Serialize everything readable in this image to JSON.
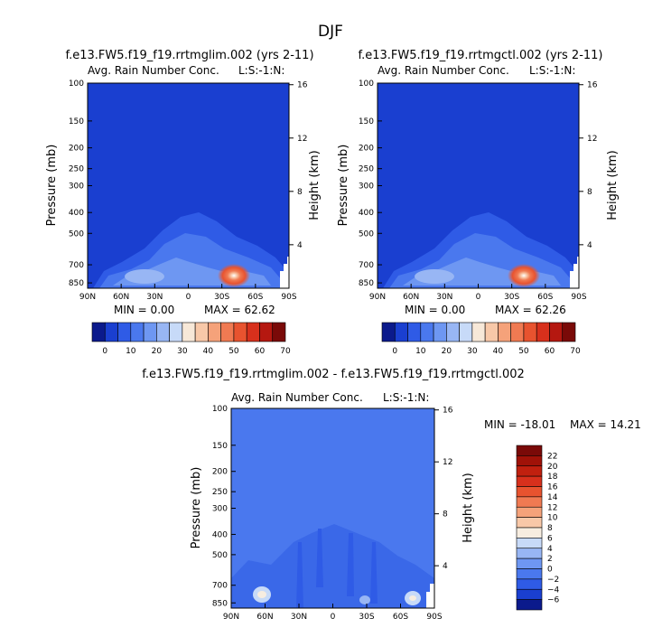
{
  "page_title": "DJF",
  "chart_data": [
    {
      "type": "heatmap",
      "title": "f.e13.FW5.f19_f19.rrtmglim.002 (yrs 2-11)",
      "subtitle_left": "Avg. Rain Number Conc.",
      "subtitle_right": "L:S:-1:N:",
      "ylabel": "Pressure (mb)",
      "y2label": "Height (km)",
      "x_ticks": [
        "90N",
        "60N",
        "30N",
        "0",
        "30S",
        "60S",
        "90S"
      ],
      "y_ticks": [
        "100",
        "150",
        "200",
        "250",
        "300",
        "400",
        "500",
        "700",
        "850"
      ],
      "y2_ticks": [
        "16",
        "12",
        "8",
        "4"
      ],
      "min_label": "MIN =    0.00",
      "max_label": "MAX =   62.62",
      "min": 0.0,
      "max": 62.62,
      "colorbar_labels": [
        "0",
        "10",
        "20",
        "30",
        "40",
        "50",
        "60",
        "70"
      ],
      "levels": [
        -5,
        0,
        5,
        10,
        15,
        20,
        25,
        30,
        35,
        40,
        45,
        50,
        55,
        60,
        65,
        70
      ],
      "colors": [
        "#0b1a8c",
        "#1a3fd0",
        "#2f5be6",
        "#4a78ee",
        "#6e97f2",
        "#98b6f4",
        "#c7daf8",
        "#f7e8d8",
        "#f8c8a8",
        "#f5a27a",
        "#f07a52",
        "#e8532f",
        "#d7301c",
        "#b51810",
        "#7a0a08"
      ],
      "peak": {
        "lat_label": "45S",
        "pressure_mb": 850,
        "value": 62.62
      }
    },
    {
      "type": "heatmap",
      "title": "f.e13.FW5.f19_f19.rrtmgctl.002 (yrs 2-11)",
      "subtitle_left": "Avg. Rain Number Conc.",
      "subtitle_right": "L:S:-1:N:",
      "ylabel": "Pressure (mb)",
      "y2label": "Height (km)",
      "x_ticks": [
        "90N",
        "60N",
        "30N",
        "0",
        "30S",
        "60S",
        "90S"
      ],
      "y_ticks": [
        "100",
        "150",
        "200",
        "250",
        "300",
        "400",
        "500",
        "700",
        "850"
      ],
      "y2_ticks": [
        "16",
        "12",
        "8",
        "4"
      ],
      "min_label": "MIN =    0.00",
      "max_label": "MAX =   62.26",
      "min": 0.0,
      "max": 62.26,
      "colorbar_labels": [
        "0",
        "10",
        "20",
        "30",
        "40",
        "50",
        "60",
        "70"
      ],
      "levels": [
        -5,
        0,
        5,
        10,
        15,
        20,
        25,
        30,
        35,
        40,
        45,
        50,
        55,
        60,
        65,
        70
      ],
      "colors": [
        "#0b1a8c",
        "#1a3fd0",
        "#2f5be6",
        "#4a78ee",
        "#6e97f2",
        "#98b6f4",
        "#c7daf8",
        "#f7e8d8",
        "#f8c8a8",
        "#f5a27a",
        "#f07a52",
        "#e8532f",
        "#d7301c",
        "#b51810",
        "#7a0a08"
      ],
      "peak": {
        "lat_label": "45S",
        "pressure_mb": 850,
        "value": 62.26
      }
    },
    {
      "type": "heatmap",
      "title": "f.e13.FW5.f19_f19.rrtmglim.002 - f.e13.FW5.f19_f19.rrtmgctl.002",
      "subtitle_left": "Avg. Rain Number Conc.",
      "subtitle_right": "L:S:-1:N:",
      "ylabel": "Pressure (mb)",
      "y2label": "Height (km)",
      "x_ticks": [
        "90N",
        "60N",
        "30N",
        "0",
        "30S",
        "60S",
        "90S"
      ],
      "y_ticks": [
        "100",
        "150",
        "200",
        "250",
        "300",
        "400",
        "500",
        "700",
        "850"
      ],
      "y2_ticks": [
        "16",
        "12",
        "8",
        "4"
      ],
      "min_label": "MIN = -18.01",
      "max_label": "MAX =   14.21",
      "min": -18.01,
      "max": 14.21,
      "colorbar_labels": [
        "22",
        "20",
        "18",
        "16",
        "14",
        "12",
        "10",
        "8",
        "6",
        "4",
        "2",
        "0",
        "-2",
        "-4",
        "-6"
      ],
      "colors": [
        "#7a0a08",
        "#a01208",
        "#c0200f",
        "#d7301c",
        "#e8532f",
        "#f07a52",
        "#f5a27a",
        "#f8c8a8",
        "#f7ede0",
        "#c7daf8",
        "#98b6f4",
        "#6e97f2",
        "#4a78ee",
        "#2f5be6",
        "#1a3fd0",
        "#0b1a8c"
      ]
    }
  ]
}
